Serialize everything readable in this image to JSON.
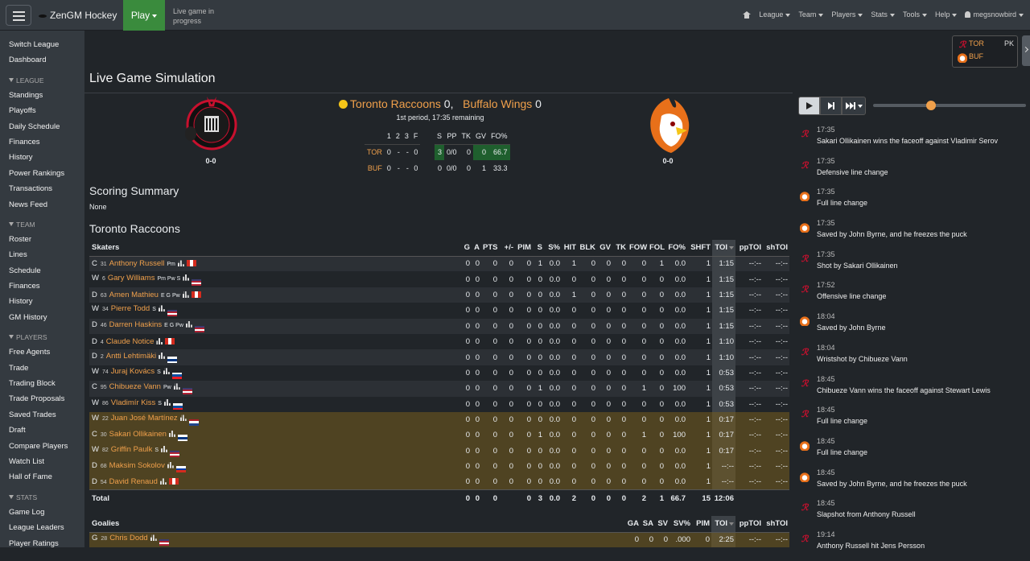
{
  "navbar": {
    "brand": "ZenGM Hockey",
    "play": "Play",
    "status": "Live game in progress",
    "menu": [
      "League",
      "Team",
      "Players",
      "Stats",
      "Tools",
      "Help"
    ],
    "user": "megsnowbird"
  },
  "sidebar": {
    "links": [
      "Switch League",
      "Dashboard"
    ],
    "sections": [
      {
        "title": "LEAGUE",
        "links": [
          "Standings",
          "Playoffs",
          "Daily Schedule",
          "Finances",
          "History",
          "Power Rankings",
          "Transactions",
          "News Feed"
        ]
      },
      {
        "title": "TEAM",
        "links": [
          "Roster",
          "Lines",
          "Schedule",
          "Finances",
          "History",
          "GM History"
        ]
      },
      {
        "title": "PLAYERS",
        "links": [
          "Free Agents",
          "Trade",
          "Trading Block",
          "Trade Proposals",
          "Saved Trades",
          "Draft",
          "Compare Players",
          "Watch List",
          "Hall of Fame"
        ]
      },
      {
        "title": "STATS",
        "links": [
          "Game Log",
          "League Leaders",
          "Player Ratings"
        ]
      }
    ]
  },
  "mini_score": {
    "rows": [
      {
        "team": "TOR",
        "status": "PK"
      },
      {
        "team": "BUF"
      }
    ]
  },
  "title": "Live Game Simulation",
  "game": {
    "teams": [
      {
        "name": "Toronto Raccoons",
        "score": 0,
        "record": "0-0"
      },
      {
        "name": "Buffalo Wings",
        "score": 0,
        "record": "0-0"
      }
    ],
    "separator": ",",
    "status": "1st period, 17:35 remaining",
    "line_score": {
      "header": [
        null,
        "1",
        "2",
        "3",
        "F"
      ],
      "rows": [
        [
          "TOR",
          0,
          "-",
          "-",
          0
        ],
        [
          "BUF",
          0,
          "-",
          "-",
          0
        ]
      ]
    },
    "team_stats": {
      "header": [
        "S",
        "PP",
        "TK",
        "GV",
        "FO%"
      ],
      "rows": [
        [
          3,
          "0/0",
          0,
          0,
          "66.7"
        ],
        [
          0,
          "0/0",
          0,
          1,
          "33.3"
        ]
      ],
      "highlight": [
        [
          true,
          false,
          false,
          true,
          true
        ],
        [
          false,
          false,
          false,
          false,
          false
        ]
      ]
    }
  },
  "scoring_summary": {
    "title": "Scoring Summary",
    "text": "None"
  },
  "box_score": {
    "team": "Toronto Raccoons",
    "skaters": {
      "header": [
        "Skaters",
        "G",
        "A",
        "PTS",
        "+/-",
        "PIM",
        "S",
        "S%",
        "HIT",
        "BLK",
        "GV",
        "TK",
        "FOW",
        "FOL",
        "FO%",
        "SHFT",
        "TOI",
        "ppTOI",
        "shTOI"
      ],
      "rows": [
        {
          "pos": "C",
          "num": 31,
          "name": "Anthony Russell",
          "skills": "Pm",
          "on_ice": false,
          "flag": {
            "dir": "v",
            "colors": [
              "#d52b1e",
              "#ffffff",
              "#d52b1e"
            ]
          },
          "stats": [
            "0",
            "0",
            "0",
            "0",
            "0",
            "1",
            "0.0",
            "1",
            "0",
            "0",
            "0",
            "0",
            "1",
            "0.0",
            "1",
            "1:15",
            "--:--",
            "--:--"
          ]
        },
        {
          "pos": "W",
          "num": 6,
          "name": "Gary Williams",
          "skills": "Pm Pw S",
          "on_ice": false,
          "flag": {
            "dir": "h",
            "colors": [
              "#3c3b6e",
              "#b22234",
              "#ffffff",
              "#b22234"
            ]
          },
          "stats": [
            "0",
            "0",
            "0",
            "0",
            "0",
            "0",
            "0.0",
            "0",
            "0",
            "0",
            "0",
            "0",
            "0",
            "0.0",
            "1",
            "1:15",
            "--:--",
            "--:--"
          ]
        },
        {
          "pos": "D",
          "num": 63,
          "name": "Amen Mathieu",
          "skills": "E G Pw",
          "on_ice": false,
          "flag": {
            "dir": "v",
            "colors": [
              "#d52b1e",
              "#ffffff",
              "#d52b1e"
            ]
          },
          "stats": [
            "0",
            "0",
            "0",
            "0",
            "0",
            "0",
            "0.0",
            "1",
            "0",
            "0",
            "0",
            "0",
            "0",
            "0.0",
            "1",
            "1:15",
            "--:--",
            "--:--"
          ]
        },
        {
          "pos": "W",
          "num": 34,
          "name": "Pierre Todd",
          "skills": "S",
          "on_ice": false,
          "flag": {
            "dir": "h",
            "colors": [
              "#3c3b6e",
              "#b22234",
              "#ffffff",
              "#b22234"
            ]
          },
          "stats": [
            "0",
            "0",
            "0",
            "0",
            "0",
            "0",
            "0.0",
            "0",
            "0",
            "0",
            "0",
            "0",
            "0",
            "0.0",
            "1",
            "1:15",
            "--:--",
            "--:--"
          ]
        },
        {
          "pos": "D",
          "num": 46,
          "name": "Darren Haskins",
          "skills": "E G Pw",
          "on_ice": false,
          "flag": {
            "dir": "h",
            "colors": [
              "#3c3b6e",
              "#b22234",
              "#ffffff",
              "#b22234"
            ]
          },
          "stats": [
            "0",
            "0",
            "0",
            "0",
            "0",
            "0",
            "0.0",
            "0",
            "0",
            "0",
            "0",
            "0",
            "0",
            "0.0",
            "1",
            "1:15",
            "--:--",
            "--:--"
          ]
        },
        {
          "pos": "D",
          "num": 4,
          "name": "Claude Notice",
          "skills": null,
          "on_ice": false,
          "flag": {
            "dir": "v",
            "colors": [
              "#d52b1e",
              "#ffffff",
              "#d52b1e"
            ]
          },
          "stats": [
            "0",
            "0",
            "0",
            "0",
            "0",
            "0",
            "0.0",
            "0",
            "0",
            "0",
            "0",
            "0",
            "0",
            "0.0",
            "1",
            "1:10",
            "--:--",
            "--:--"
          ]
        },
        {
          "pos": "D",
          "num": 2,
          "name": "Antti Lehtimäki",
          "skills": null,
          "on_ice": false,
          "flag": {
            "dir": "h",
            "colors": [
              "#ffffff",
              "#003580",
              "#ffffff"
            ]
          },
          "stats": [
            "0",
            "0",
            "0",
            "0",
            "0",
            "0",
            "0.0",
            "0",
            "0",
            "0",
            "0",
            "0",
            "0",
            "0.0",
            "1",
            "1:10",
            "--:--",
            "--:--"
          ]
        },
        {
          "pos": "W",
          "num": 74,
          "name": "Juraj Kovács",
          "skills": "S",
          "on_ice": false,
          "flag": {
            "dir": "h",
            "colors": [
              "#ffffff",
              "#0b4ea2",
              "#ee1c25"
            ]
          },
          "stats": [
            "0",
            "0",
            "0",
            "0",
            "0",
            "0",
            "0.0",
            "0",
            "0",
            "0",
            "0",
            "0",
            "0",
            "0.0",
            "1",
            "0:53",
            "--:--",
            "--:--"
          ]
        },
        {
          "pos": "C",
          "num": 95,
          "name": "Chibueze Vann",
          "skills": "Pw",
          "on_ice": false,
          "flag": {
            "dir": "h",
            "colors": [
              "#3c3b6e",
              "#b22234",
              "#ffffff",
              "#b22234"
            ]
          },
          "stats": [
            "0",
            "0",
            "0",
            "0",
            "0",
            "1",
            "0.0",
            "0",
            "0",
            "0",
            "0",
            "1",
            "0",
            "100",
            "1",
            "0:53",
            "--:--",
            "--:--"
          ]
        },
        {
          "pos": "W",
          "num": 86,
          "name": "Vladimír Kiss",
          "skills": "S",
          "on_ice": false,
          "flag": {
            "dir": "h",
            "colors": [
              "#ffffff",
              "#0b4ea2",
              "#ee1c25"
            ]
          },
          "stats": [
            "0",
            "0",
            "0",
            "0",
            "0",
            "0",
            "0.0",
            "0",
            "0",
            "0",
            "0",
            "0",
            "0",
            "0.0",
            "1",
            "0:53",
            "--:--",
            "--:--"
          ]
        },
        {
          "pos": "W",
          "num": 22,
          "name": "Juan José Martínez",
          "skills": null,
          "on_ice": true,
          "flag": {
            "dir": "h",
            "colors": [
              "#ae1c28",
              "#ffffff",
              "#21468b"
            ]
          },
          "stats": [
            "0",
            "0",
            "0",
            "0",
            "0",
            "0",
            "0.0",
            "0",
            "0",
            "0",
            "0",
            "0",
            "0",
            "0.0",
            "1",
            "0:17",
            "--:--",
            "--:--"
          ]
        },
        {
          "pos": "C",
          "num": 30,
          "name": "Sakari Ollikainen",
          "skills": null,
          "on_ice": true,
          "flag": {
            "dir": "h",
            "colors": [
              "#ffffff",
              "#003580",
              "#ffffff"
            ]
          },
          "stats": [
            "0",
            "0",
            "0",
            "0",
            "0",
            "1",
            "0.0",
            "0",
            "0",
            "0",
            "0",
            "1",
            "0",
            "100",
            "1",
            "0:17",
            "--:--",
            "--:--"
          ]
        },
        {
          "pos": "W",
          "num": 82,
          "name": "Griffin Paulk",
          "skills": "S",
          "on_ice": true,
          "flag": {
            "dir": "h",
            "colors": [
              "#3c3b6e",
              "#b22234",
              "#ffffff",
              "#b22234"
            ]
          },
          "stats": [
            "0",
            "0",
            "0",
            "0",
            "0",
            "0",
            "0.0",
            "0",
            "0",
            "0",
            "0",
            "0",
            "0",
            "0.0",
            "1",
            "0:17",
            "--:--",
            "--:--"
          ]
        },
        {
          "pos": "D",
          "num": 68,
          "name": "Maksim Sokolov",
          "skills": null,
          "on_ice": true,
          "flag": {
            "dir": "h",
            "colors": [
              "#ffffff",
              "#0039a6",
              "#d52b1e"
            ]
          },
          "stats": [
            "0",
            "0",
            "0",
            "0",
            "0",
            "0",
            "0.0",
            "0",
            "0",
            "0",
            "0",
            "0",
            "0",
            "0.0",
            "1",
            "--:--",
            "--:--",
            "--:--"
          ]
        },
        {
          "pos": "D",
          "num": 54,
          "name": "David Renaud",
          "skills": null,
          "on_ice": true,
          "flag": {
            "dir": "v",
            "colors": [
              "#d52b1e",
              "#ffffff",
              "#d52b1e"
            ]
          },
          "stats": [
            "0",
            "0",
            "0",
            "0",
            "0",
            "0",
            "0.0",
            "0",
            "0",
            "0",
            "0",
            "0",
            "0",
            "0.0",
            "1",
            "--:--",
            "--:--",
            "--:--"
          ]
        }
      ],
      "total": {
        "label": "Total",
        "stats": [
          "0",
          "0",
          "0",
          null,
          "0",
          "3",
          "0.0",
          "2",
          "0",
          "0",
          "0",
          "2",
          "1",
          "66.7",
          "15",
          "12:06",
          null,
          null
        ]
      }
    },
    "goalies": {
      "header": [
        "Goalies",
        "GA",
        "SA",
        "SV",
        "SV%",
        "PIM",
        "TOI",
        "ppTOI",
        "shTOI"
      ],
      "rows": [
        {
          "pos": "G",
          "num": 28,
          "name": "Chris Dodd",
          "skills": null,
          "on_ice": true,
          "flag": {
            "dir": "h",
            "colors": [
              "#3c3b6e",
              "#b22234",
              "#ffffff",
              "#b22234"
            ]
          },
          "stats": [
            "0",
            "0",
            "0",
            ".000",
            "0",
            "2:25",
            "--:--",
            "--:--"
          ]
        }
      ]
    }
  },
  "play_by_play": [
    {
      "team": "TOR",
      "time": "17:35",
      "text": "Sakari Ollikainen wins the faceoff against Vladimir Serov"
    },
    {
      "team": "TOR",
      "time": "17:35",
      "text": "Defensive line change"
    },
    {
      "team": "BUF",
      "time": "17:35",
      "text": "Full line change"
    },
    {
      "team": "BUF",
      "time": "17:35",
      "text": "Saved by John Byrne, and he freezes the puck"
    },
    {
      "team": "TOR",
      "time": "17:35",
      "text": "Shot by Sakari Ollikainen"
    },
    {
      "team": "TOR",
      "time": "17:52",
      "text": "Offensive line change"
    },
    {
      "team": "BUF",
      "time": "18:04",
      "text": "Saved by John Byrne"
    },
    {
      "team": "TOR",
      "time": "18:04",
      "text": "Wristshot by Chibueze Vann"
    },
    {
      "team": "TOR",
      "time": "18:45",
      "text": "Chibueze Vann wins the faceoff against Stewart Lewis"
    },
    {
      "team": "TOR",
      "time": "18:45",
      "text": "Full line change"
    },
    {
      "team": "BUF",
      "time": "18:45",
      "text": "Full line change"
    },
    {
      "team": "BUF",
      "time": "18:45",
      "text": "Saved by John Byrne, and he freezes the puck"
    },
    {
      "team": "TOR",
      "time": "18:45",
      "text": "Slapshot from Anthony Russell"
    },
    {
      "team": "TOR",
      "time": "19:14",
      "text": "Anthony Russell hit Jens Persson"
    }
  ]
}
